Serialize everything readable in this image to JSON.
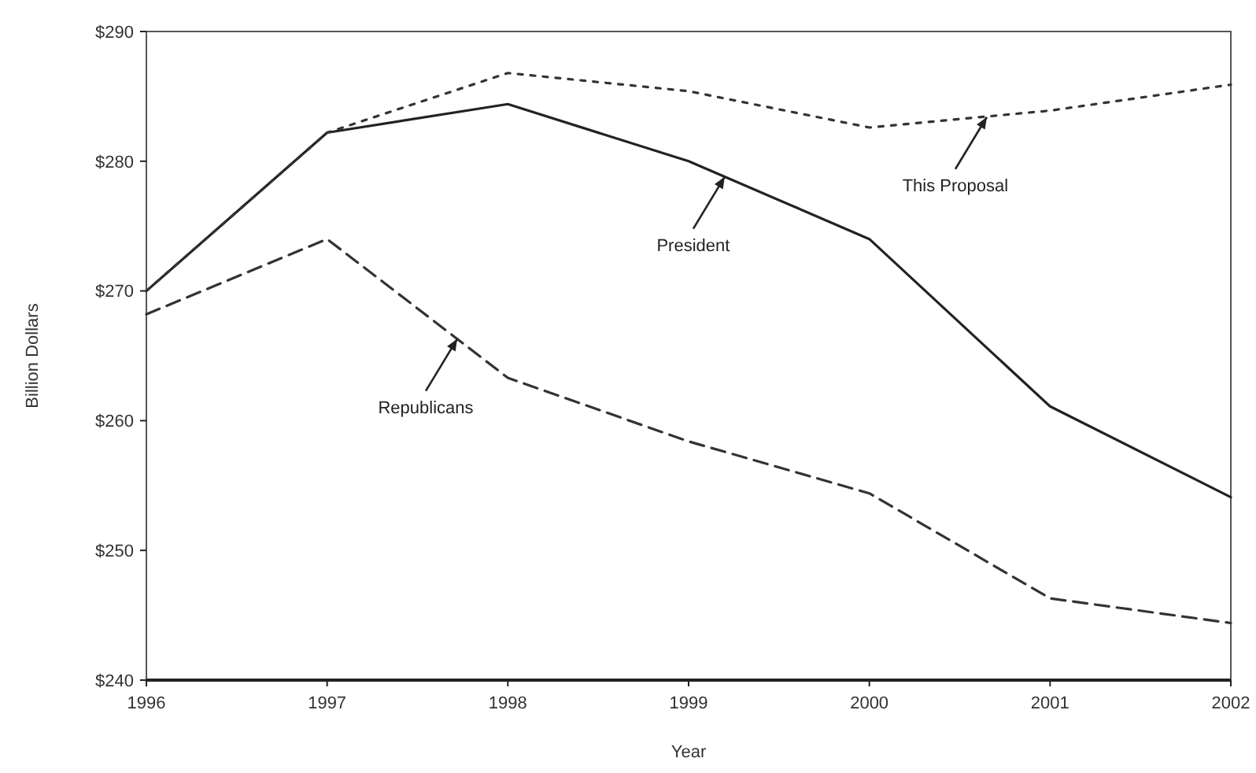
{
  "chart_data": {
    "type": "line",
    "xlabel": "Year",
    "ylabel": "Billion Dollars",
    "x": [
      1996,
      1997,
      1998,
      1999,
      2000,
      2001,
      2002
    ],
    "xlim": [
      1996,
      2002
    ],
    "xticks": [
      1996,
      1997,
      1998,
      1999,
      2000,
      2001,
      2002
    ],
    "ylim": [
      240,
      290
    ],
    "yticks": [
      {
        "value": 240,
        "label": "$240"
      },
      {
        "value": 250,
        "label": "$250"
      },
      {
        "value": 260,
        "label": "$260"
      },
      {
        "value": 270,
        "label": "$270"
      },
      {
        "value": 280,
        "label": "$280"
      },
      {
        "value": 290,
        "label": "$290"
      }
    ],
    "grid": false,
    "marker": "none",
    "series": [
      {
        "color": "#222222",
        "line_style": "solid",
        "values": [
          270,
          282.2,
          284.4,
          280,
          274,
          261.1,
          254.1
        ]
      },
      {
        "color": "#333333",
        "line_style": "dotted",
        "values": [
          270,
          282.2,
          286.8,
          285.4,
          282.6,
          283.9,
          285.9
        ]
      },
      {
        "color": "#333333",
        "line_style": "dashed",
        "values": [
          268.2,
          274,
          263.3,
          258.4,
          254.4,
          246.3,
          244.4
        ]
      }
    ],
    "annotations": [
      {
        "text": "President",
        "x": 1999.2,
        "y": 278.8
      },
      {
        "text": "This Proposal",
        "x": 2000.65,
        "y": 283.4
      },
      {
        "text": "Republicans",
        "x": 1997.72,
        "y": 266.3
      }
    ]
  }
}
